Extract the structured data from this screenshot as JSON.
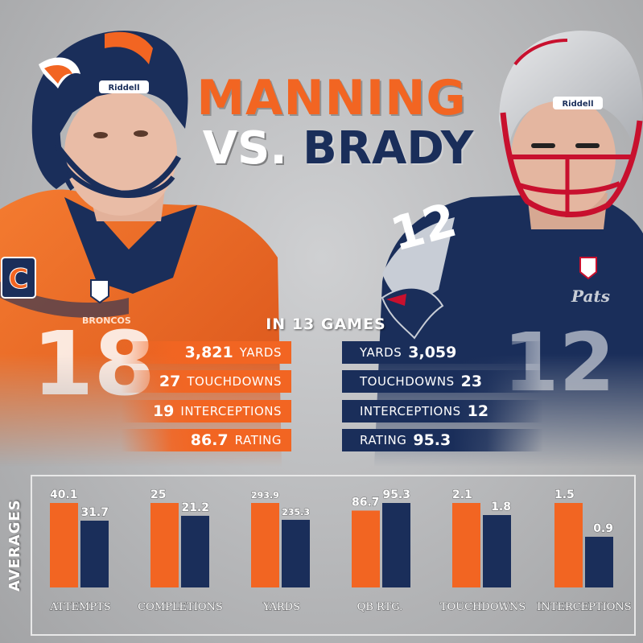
{
  "title": {
    "line1": "MANNING",
    "vs": "VS.",
    "line2": "BRADY"
  },
  "subtitle": "IN 13 GAMES",
  "colors": {
    "broncos_orange": "#f26522",
    "patriots_navy": "#1a2e5a"
  },
  "players": {
    "left": {
      "jersey_badge": "C",
      "jersey_text": "BRONCOS",
      "helmet_brand": "Riddell"
    },
    "right": {
      "helmet_brand": "Riddell",
      "jersey_text": "Pats"
    }
  },
  "stats": {
    "manning": [
      {
        "value": "3,821",
        "label": "YARDS"
      },
      {
        "value": "27",
        "label": "TOUCHDOWNS"
      },
      {
        "value": "19",
        "label": "INTERCEPTIONS"
      },
      {
        "value": "86.7",
        "label": "RATING"
      }
    ],
    "brady": [
      {
        "label": "YARDS",
        "value": "3,059"
      },
      {
        "label": "TOUCHDOWNS",
        "value": "23"
      },
      {
        "label": "INTERCEPTIONS",
        "value": "12"
      },
      {
        "label": "RATING",
        "value": "95.3"
      }
    ]
  },
  "averages_label": "AVERAGES",
  "chart_data": {
    "type": "bar",
    "categories": [
      "ATTEMPTS",
      "COMPLETIONS",
      "YARDS",
      "QB RTG.",
      "TOUCHDOWNS",
      "INTERCEPTIONS"
    ],
    "series": [
      {
        "values": [
          40.1,
          25,
          293.9,
          86.7,
          2.1,
          1.5
        ],
        "labels": [
          "40.1",
          "25",
          "293.9",
          "86.7",
          "2.1",
          "1.5"
        ],
        "color": "#f26522"
      },
      {
        "values": [
          31.7,
          21.2,
          235.3,
          95.3,
          1.8,
          0.9
        ],
        "labels": [
          "31.7",
          "21.2",
          "235.3",
          "95.3",
          "1.8",
          "0.9"
        ],
        "color": "#1a2e5a"
      }
    ],
    "title": "",
    "ylabel": "AVERAGES",
    "grid": false,
    "scaling": "each category scaled independently to its larger value"
  }
}
